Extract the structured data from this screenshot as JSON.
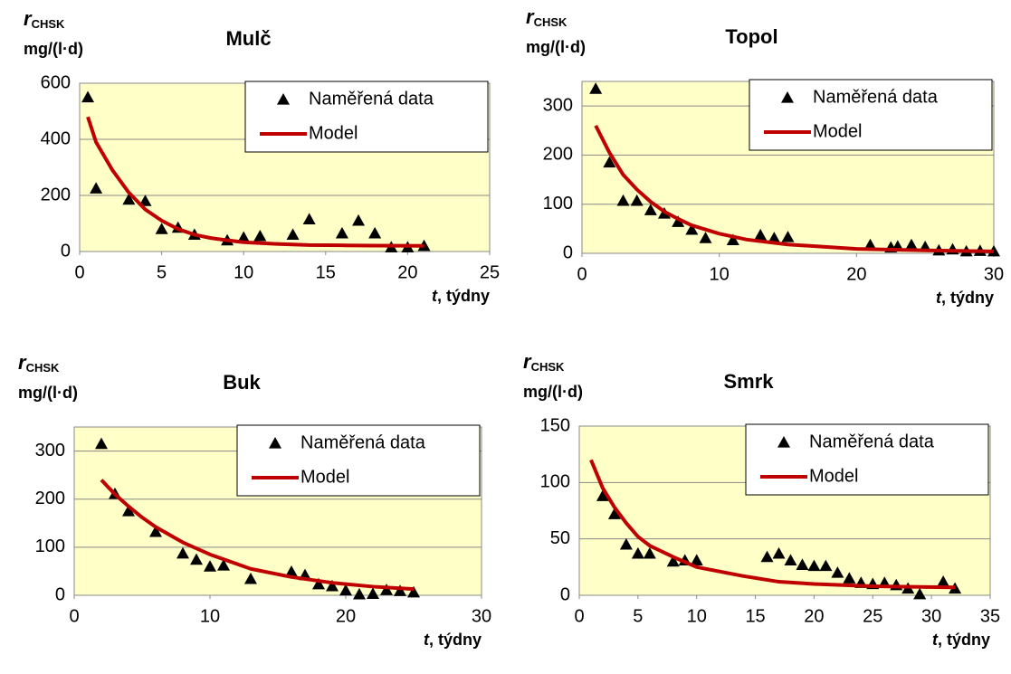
{
  "chart_data": [
    {
      "type": "scatter",
      "title": "Mulč",
      "y_label": "r",
      "y_label_sub": "CHSK",
      "y_unit": "mg/(l·d)",
      "x_label": "t",
      "x_label_suffix": ", týdny",
      "xlim": [
        0,
        25
      ],
      "xticks": [
        0,
        5,
        10,
        15,
        20,
        25
      ],
      "ylim": [
        0,
        600
      ],
      "yticks": [
        0,
        200,
        400,
        600
      ],
      "grid": true,
      "legend": "upper right",
      "plot_background": "#ffffc8",
      "series": [
        {
          "name": "Naměřená data",
          "color": "#000000",
          "marker": "triangle",
          "x": [
            0.5,
            1,
            3,
            4,
            5,
            6,
            7,
            9,
            10,
            11,
            13,
            14,
            16,
            17,
            18,
            19,
            20,
            21
          ],
          "values": [
            550,
            225,
            185,
            180,
            80,
            85,
            60,
            40,
            50,
            55,
            60,
            115,
            65,
            110,
            65,
            15,
            15,
            20
          ]
        },
        {
          "name": "Model",
          "color": "#c00000",
          "marker": "line",
          "x": [
            0.5,
            1,
            2,
            3,
            4,
            5,
            6,
            7,
            8,
            9,
            10,
            12,
            14,
            16,
            18,
            21
          ],
          "values": [
            480,
            390,
            290,
            210,
            150,
            110,
            80,
            60,
            48,
            40,
            33,
            27,
            23,
            22,
            21,
            20
          ]
        }
      ]
    },
    {
      "type": "scatter",
      "title": "Topol",
      "y_label": "r",
      "y_label_sub": "CHSK",
      "y_unit": "mg/(l·d)",
      "x_label": "t",
      "x_label_suffix": ", týdny",
      "xlim": [
        0,
        30
      ],
      "xticks": [
        0,
        10,
        20,
        30
      ],
      "ylim": [
        0,
        350
      ],
      "yticks": [
        0,
        100,
        200,
        300
      ],
      "grid": true,
      "legend": "upper right",
      "plot_background": "#ffffc8",
      "series": [
        {
          "name": "Naměřená data",
          "color": "#000000",
          "marker": "triangle",
          "x": [
            1,
            2,
            3,
            4,
            5,
            6,
            7,
            8,
            9,
            11,
            13,
            14,
            15,
            21,
            22.5,
            23,
            24,
            25,
            26,
            27,
            28,
            29,
            30
          ],
          "values": [
            335,
            185,
            107,
            107,
            88,
            81,
            64,
            48,
            31,
            27,
            37,
            31,
            33,
            17,
            12,
            14,
            17,
            13,
            6,
            8,
            4,
            5,
            4
          ]
        },
        {
          "name": "Model",
          "color": "#c00000",
          "marker": "line",
          "x": [
            1,
            2,
            3,
            4,
            5,
            6,
            7,
            8,
            10,
            12,
            15,
            20,
            25,
            30
          ],
          "values": [
            260,
            205,
            160,
            130,
            105,
            85,
            70,
            57,
            40,
            28,
            18,
            9,
            6,
            4
          ]
        }
      ]
    },
    {
      "type": "scatter",
      "title": "Buk",
      "y_label": "r",
      "y_label_sub": "CHSK",
      "y_unit": "mg/(l·d)",
      "x_label": "t",
      "x_label_suffix": ", týdny",
      "xlim": [
        0,
        30
      ],
      "xticks": [
        0,
        10,
        20,
        30
      ],
      "ylim": [
        0,
        350
      ],
      "yticks": [
        0,
        100,
        200,
        300
      ],
      "grid": true,
      "legend": "upper right",
      "plot_background": "#ffffc8",
      "series": [
        {
          "name": "Naměřená data",
          "color": "#000000",
          "marker": "triangle",
          "x": [
            2,
            3,
            4,
            6,
            8,
            9,
            10,
            11,
            13,
            16,
            17,
            18,
            19,
            20,
            21,
            22,
            23,
            24,
            25
          ],
          "values": [
            315,
            211,
            175,
            132,
            87,
            74,
            60,
            62,
            34,
            49,
            42,
            23,
            19,
            10,
            2,
            3,
            11,
            9,
            6
          ]
        },
        {
          "name": "Model",
          "color": "#c00000",
          "marker": "line",
          "x": [
            2,
            3,
            4,
            5,
            6,
            8,
            10,
            13,
            16,
            19,
            22,
            25
          ],
          "values": [
            240,
            210,
            185,
            162,
            142,
            110,
            85,
            55,
            38,
            26,
            18,
            13
          ]
        }
      ]
    },
    {
      "type": "scatter",
      "title": "Smrk",
      "y_label": "r",
      "y_label_sub": "CHSK",
      "y_unit": "mg/(l·d)",
      "x_label": "t",
      "x_label_suffix": ", týdny",
      "xlim": [
        0,
        35
      ],
      "xticks": [
        0,
        5,
        10,
        15,
        20,
        25,
        30,
        35
      ],
      "ylim": [
        0,
        150
      ],
      "yticks": [
        0,
        50,
        100,
        150
      ],
      "grid": true,
      "legend": "upper right",
      "plot_background": "#ffffc8",
      "series": [
        {
          "name": "Naměřená data",
          "color": "#000000",
          "marker": "triangle",
          "x": [
            2,
            3,
            4,
            5,
            6,
            8,
            9,
            10,
            16,
            17,
            18,
            19,
            20,
            21,
            22,
            23,
            24,
            25,
            26,
            27,
            28,
            29,
            31,
            32
          ],
          "values": [
            88,
            72,
            45,
            37,
            37,
            30,
            31,
            31,
            34,
            37,
            31,
            27,
            26,
            26,
            20,
            15,
            11,
            10,
            11,
            9,
            6,
            1,
            12,
            6
          ]
        },
        {
          "name": "Model",
          "color": "#c00000",
          "marker": "line",
          "x": [
            1,
            2,
            3,
            4,
            5,
            6,
            8,
            10,
            14,
            17,
            20,
            25,
            32
          ],
          "values": [
            120,
            95,
            78,
            64,
            52,
            44,
            34,
            25,
            17,
            12,
            10,
            8,
            7
          ]
        }
      ]
    }
  ]
}
